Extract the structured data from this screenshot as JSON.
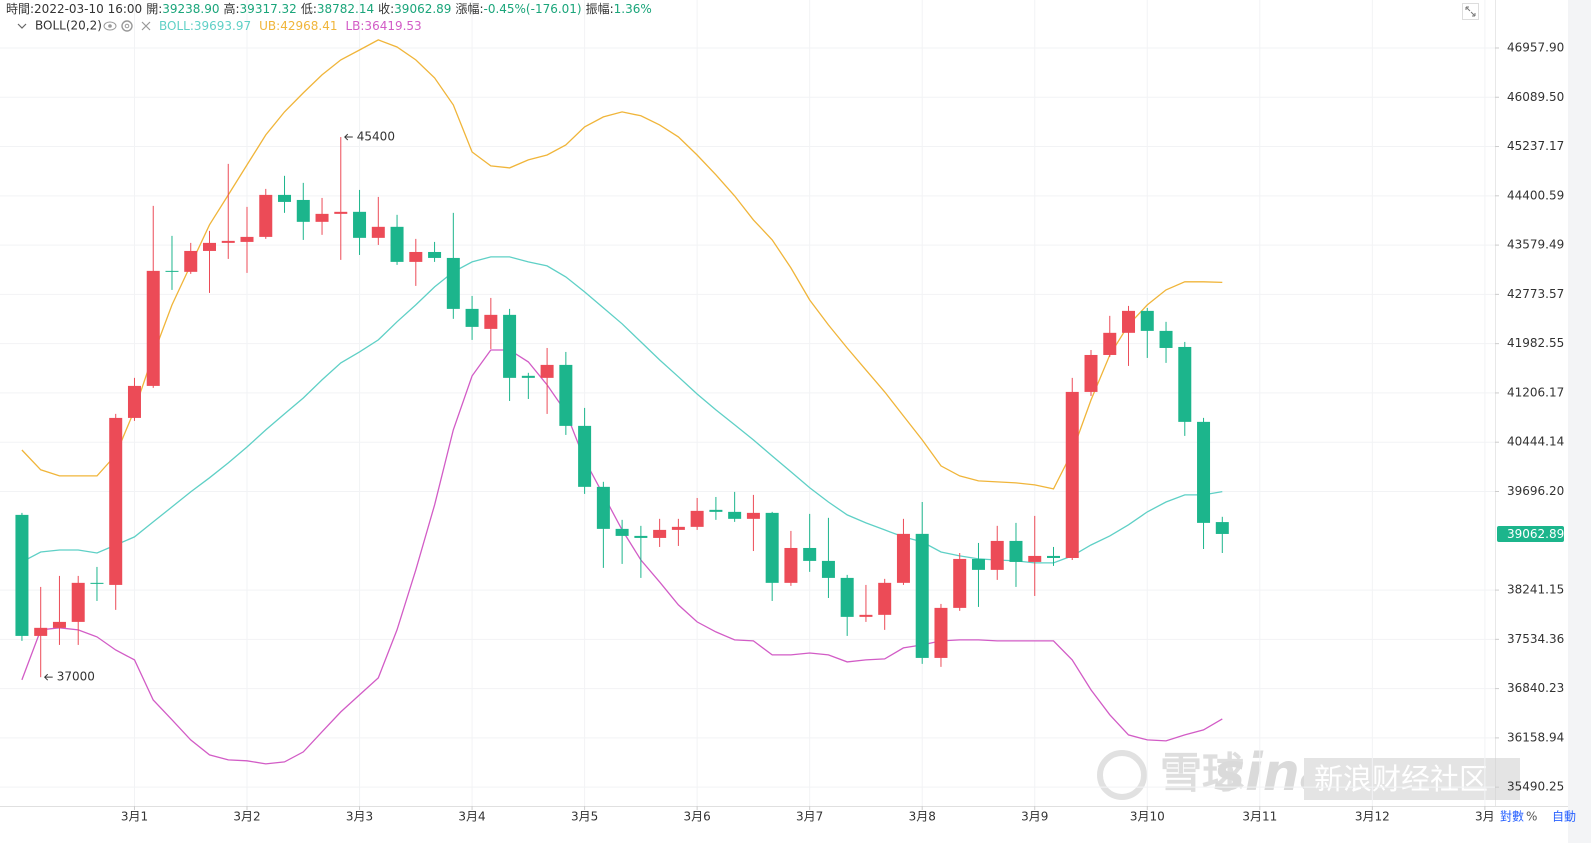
{
  "header": [
    {
      "label": "時間:",
      "value": "2022-03-10 16:00"
    },
    {
      "label": "開:",
      "value": "39238.90",
      "color": "#1aa57a"
    },
    {
      "label": "高:",
      "value": "39317.32",
      "color": "#1aa57a"
    },
    {
      "label": "低:",
      "value": "38782.14",
      "color": "#1aa57a"
    },
    {
      "label": "收:",
      "value": "39062.89",
      "color": "#1aa57a"
    },
    {
      "label": "漲幅:",
      "value": "-0.45%(-176.01)",
      "color": "#1aa57a"
    },
    {
      "label": "振幅:",
      "value": "1.36%",
      "color": "#1aa57a"
    }
  ],
  "indicator": "BOLL(20,2)",
  "controls": [
    "對數",
    "%",
    "自動"
  ],
  "watermark": {
    "logo": "雪球",
    "brand": "sina",
    "community": "新浪财经社区"
  },
  "chart_data": {
    "type": "candlestick",
    "log": true,
    "grid": true,
    "up_color": "#ec4b57",
    "down_color": "#1cb58c",
    "x": [
      0,
      0.1667,
      0.3333,
      0.5,
      0.6667,
      0.8333,
      1,
      1.1667,
      1.3333,
      1.5,
      1.6667,
      1.8333,
      2,
      2.1667,
      2.3333,
      2.5,
      2.6667,
      2.8333,
      3,
      3.1667,
      3.3333,
      3.5,
      3.6667,
      3.8333,
      4,
      4.1667,
      4.3333,
      4.5,
      4.6667,
      4.8333,
      5,
      5.1667,
      5.3333,
      5.5,
      5.6667,
      5.8333,
      6,
      6.1667,
      6.3333,
      6.5,
      6.6667,
      6.8333,
      7,
      7.1667,
      7.3333,
      7.5,
      7.6667,
      7.8333,
      8,
      8.1667,
      8.3333,
      8.5,
      8.6667,
      8.8333,
      9,
      9.1667,
      9.3333,
      9.5,
      9.6667,
      9.8333,
      10,
      10.1667,
      10.3333,
      10.5,
      10.6667
    ],
    "xlim": [
      -0.195,
      13.09
    ],
    "xticks": [
      {
        "value": 1,
        "label": "3月1"
      },
      {
        "value": 2,
        "label": "3月2"
      },
      {
        "value": 3,
        "label": "3月3"
      },
      {
        "value": 4,
        "label": "3月4"
      },
      {
        "value": 5,
        "label": "3月5"
      },
      {
        "value": 6,
        "label": "3月6"
      },
      {
        "value": 7,
        "label": "3月7"
      },
      {
        "value": 8,
        "label": "3月8"
      },
      {
        "value": 9,
        "label": "3月9"
      },
      {
        "value": 10,
        "label": "3月10"
      },
      {
        "value": 11,
        "label": "3月11"
      },
      {
        "value": 12,
        "label": "3月12"
      },
      {
        "value": 13,
        "label": "3月"
      }
    ],
    "ylim": [
      35238,
      47819
    ],
    "yticks": [
      {
        "value": 46957.9,
        "label": "46957.90"
      },
      {
        "value": 46089.5,
        "label": "46089.50"
      },
      45237.17,
      44400.59,
      43579.49,
      42773.57,
      41982.55,
      41206.17,
      40444.14,
      {
        "value": 39696.2,
        "label": "39696.20"
      },
      38241.15,
      37534.36,
      36840.23,
      36158.94,
      35490.25
    ],
    "candles": {
      "open": [
        39346,
        37583,
        37698,
        37783,
        38346,
        38316,
        40818,
        41316,
        43156,
        43140,
        43483,
        43616,
        43632,
        43715,
        44416,
        44331,
        43965,
        44098,
        44132,
        43699,
        43882,
        43303,
        43466,
        43368,
        42539,
        42218,
        42443,
        41474,
        41442,
        41646,
        40695,
        39766,
        39138,
        39034,
        39004,
        39123,
        39168,
        39421,
        39391,
        39287,
        39376,
        38346,
        38856,
        38666,
        38418,
        37855,
        37884,
        38346,
        39064,
        37271,
        37984,
        38695,
        38535,
        38960,
        38651,
        38739,
        38709,
        41222,
        41803,
        42155,
        42507,
        42186,
        41930,
        40757,
        39238.9
      ],
      "high": [
        39376,
        38287,
        38447,
        38447,
        38578,
        40880,
        41442,
        44231,
        43732,
        43616,
        43815,
        44941,
        44215,
        44517,
        44738,
        44619,
        44365,
        45400,
        44500,
        44382,
        44082,
        43682,
        43632,
        44115,
        42748,
        42716,
        42539,
        41521,
        41914,
        41851,
        40973,
        39842,
        39272,
        39183,
        39287,
        39287,
        39599,
        39614,
        39690,
        39645,
        39391,
        39108,
        39361,
        39302,
        38462,
        38316,
        38404,
        39287,
        39539,
        38041,
        38782,
        38930,
        39183,
        39227,
        39331,
        38871,
        41442,
        41882,
        42427,
        42587,
        42555,
        42331,
        42010,
        40818,
        39317.32
      ],
      "low": [
        37512,
        37000,
        37455,
        37455,
        38084,
        37955,
        40772,
        41285,
        42846,
        43107,
        42797,
        43352,
        43123,
        43682,
        44115,
        43665,
        43749,
        43336,
        43417,
        43582,
        43254,
        42911,
        43303,
        42379,
        42042,
        41898,
        41081,
        41112,
        40880,
        40556,
        39660,
        38564,
        38622,
        38418,
        38871,
        38886,
        39123,
        39272,
        39242,
        38811,
        38084,
        38302,
        38506,
        38127,
        37583,
        37783,
        37669,
        38316,
        37187,
        37145,
        37941,
        37998,
        38389,
        38287,
        38156,
        38593,
        38680,
        41159,
        41772,
        41630,
        41756,
        41678,
        40541,
        38841,
        38782.14
      ],
      "close": [
        37583,
        37698,
        37783,
        38346,
        38331,
        40818,
        41316,
        43156,
        43140,
        43483,
        43616,
        43649,
        43715,
        44416,
        44298,
        43965,
        44098,
        44132,
        43699,
        43882,
        43303,
        43466,
        43368,
        42539,
        42250,
        42443,
        41442,
        41442,
        41646,
        40695,
        39766,
        39138,
        39034,
        39004,
        39123,
        39168,
        39406,
        39391,
        39287,
        39376,
        38346,
        38856,
        38666,
        38418,
        37855,
        37884,
        38346,
        39064,
        37271,
        37984,
        38695,
        38535,
        38960,
        38651,
        38739,
        38709,
        41222,
        41803,
        42155,
        42507,
        42186,
        41914,
        40757,
        39227,
        39062.89
      ]
    },
    "series": [
      {
        "name": "BOLL:39693.97",
        "color": "#5fd0c6",
        "values": [
          38651,
          38797,
          38826,
          38826,
          38782,
          38900,
          39019,
          39242,
          39465,
          39690,
          39902,
          40128,
          40371,
          40633,
          40880,
          41127,
          41410,
          41678,
          41851,
          42042,
          42331,
          42603,
          42895,
          43140,
          43303,
          43385,
          43385,
          43303,
          43238,
          43058,
          42814,
          42555,
          42299,
          42010,
          41725,
          41458,
          41190,
          40942,
          40711,
          40479,
          40234,
          39993,
          39751,
          39539,
          39346,
          39227,
          39123,
          39019,
          38945,
          38797,
          38739,
          38695,
          38680,
          38666,
          38637,
          38637,
          38739,
          38900,
          39034,
          39198,
          39391,
          39539,
          39645,
          39645,
          39693.97
        ]
      },
      {
        "name": "UB:42968.41",
        "color": "#f0b53a",
        "values": [
          40325,
          40023,
          39932,
          39932,
          39932,
          40249,
          40942,
          41803,
          42603,
          43254,
          43915,
          44416,
          44924,
          45437,
          45835,
          46165,
          46482,
          46746,
          46922,
          47101,
          46976,
          46746,
          46429,
          45956,
          45144,
          44907,
          44873,
          45009,
          45093,
          45264,
          45575,
          45748,
          45835,
          45766,
          45610,
          45403,
          45093,
          44755,
          44399,
          43998,
          43665,
          43205,
          42683,
          42282,
          41914,
          41568,
          41222,
          40849,
          40479,
          40083,
          39932,
          39856,
          39841,
          39826,
          39796,
          39735,
          40295,
          41096,
          41803,
          42282,
          42603,
          42846,
          42977,
          42977,
          42968.41
        ]
      },
      {
        "name": "LB:36419.53",
        "color": "#d25cc6",
        "values": [
          36962,
          37669,
          37698,
          37669,
          37569,
          37383,
          37243,
          36682,
          36407,
          36131,
          35927,
          35859,
          35846,
          35805,
          35832,
          35967,
          36242,
          36517,
          36752,
          36990,
          37669,
          38535,
          39495,
          40633,
          41473,
          41882,
          41882,
          41693,
          41332,
          40911,
          40174,
          39645,
          39123,
          38680,
          38360,
          38027,
          37783,
          37640,
          37526,
          37512,
          37313,
          37313,
          37341,
          37313,
          37215,
          37243,
          37257,
          37412,
          37455,
          37512,
          37526,
          37526,
          37512,
          37512,
          37512,
          37512,
          37243,
          36822,
          36476,
          36200,
          36131,
          36118,
          36200,
          36269,
          36419.53
        ]
      }
    ],
    "annotations": [
      45400,
      37000
    ],
    "price_color": "#1cb58c"
  }
}
